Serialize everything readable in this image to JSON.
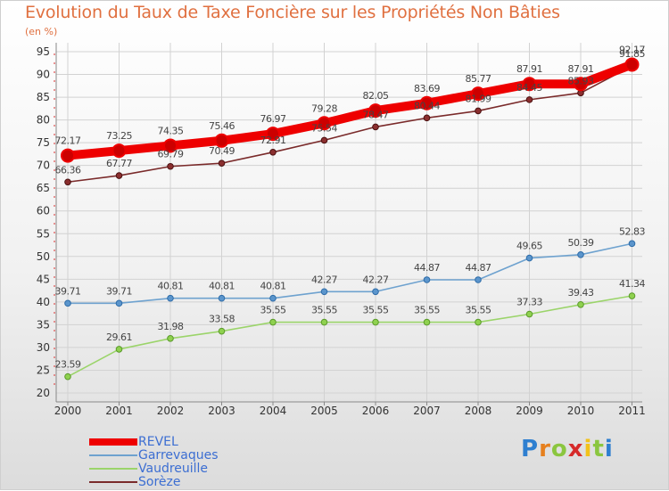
{
  "title": "Evolution du Taux de Taxe Foncière sur les Propriétés Non Bâties",
  "unit_label": "(en %)",
  "brand": {
    "text": "Proxiti",
    "letters": [
      "P",
      "r",
      "o",
      "x",
      "i",
      "t",
      "i"
    ],
    "colors": [
      "#2e7fd0",
      "#e6801e",
      "#8bc63f",
      "#d62a2a",
      "#f2c21a",
      "#8bc63f",
      "#2e7fd0"
    ]
  },
  "chart_data": {
    "type": "line",
    "title": "Evolution du Taux de Taxe Foncière sur les Propriétés Non Bâties",
    "ylabel": "(en %)",
    "xlabel": "",
    "x": [
      "2000",
      "2001",
      "2002",
      "2003",
      "2004",
      "2005",
      "2006",
      "2007",
      "2008",
      "2009",
      "2010",
      "2011"
    ],
    "ylim": [
      20,
      95
    ],
    "yticks": [
      20,
      25,
      30,
      35,
      40,
      45,
      50,
      55,
      60,
      65,
      70,
      75,
      80,
      85,
      90,
      95
    ],
    "grid": true,
    "legend_position": "bottom-left",
    "series": [
      {
        "name": "REVEL",
        "color": "#ee0000",
        "values": [
          72.17,
          73.25,
          74.35,
          75.46,
          76.97,
          79.28,
          82.05,
          83.69,
          85.77,
          87.91,
          87.91,
          92.17
        ],
        "labels": [
          "72.17",
          "73.25",
          "74.35",
          "75.46",
          "76.97",
          "79.28",
          "82.05",
          "83.69",
          "85.77",
          "87.91",
          "87.91",
          "92.17"
        ]
      },
      {
        "name": "Garrevaques",
        "color": "#6ea2cf",
        "values": [
          39.71,
          39.71,
          40.81,
          40.81,
          40.81,
          42.27,
          42.27,
          44.87,
          44.87,
          49.65,
          50.39,
          52.83
        ],
        "labels": [
          "39.71",
          "39.71",
          "40.81",
          "40.81",
          "40.81",
          "42.27",
          "42.27",
          "44.87",
          "44.87",
          "49.65",
          "50.39",
          "52.83"
        ]
      },
      {
        "name": "Vaudreuille",
        "color": "#9bd46a",
        "values": [
          23.59,
          29.61,
          31.98,
          33.58,
          35.55,
          35.55,
          35.55,
          35.55,
          35.55,
          37.33,
          39.43,
          41.34
        ],
        "labels": [
          "23.59",
          "29.61",
          "31.98",
          "33.58",
          "35.55",
          "35.55",
          "35.55",
          "35.55",
          "35.55",
          "37.33",
          "39.43",
          "41.34"
        ]
      },
      {
        "name": "Sorèze",
        "color": "#7a2a2a",
        "values": [
          66.36,
          67.77,
          69.79,
          70.49,
          72.91,
          75.54,
          78.47,
          80.44,
          81.99,
          84.45,
          85.93,
          91.85
        ],
        "labels": [
          "66.36",
          "67.77",
          "69.79",
          "70.49",
          "72.91",
          "75.54",
          "78.47",
          "80.44",
          "81.99",
          "84.45",
          "85.93",
          "91.85"
        ]
      }
    ]
  }
}
